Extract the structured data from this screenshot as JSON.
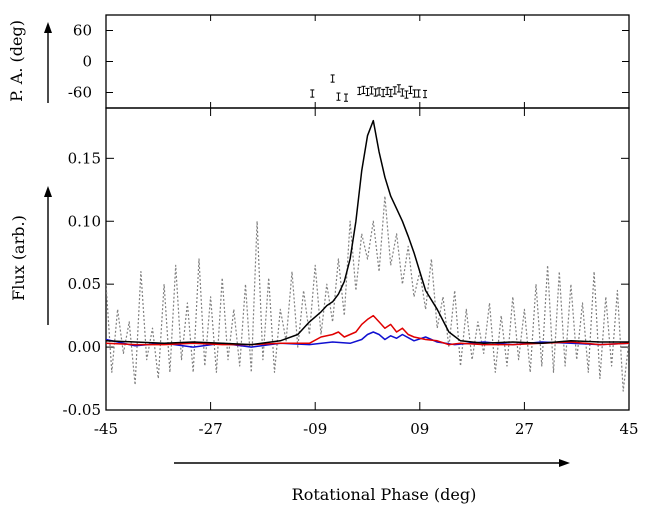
{
  "chart_data": [
    {
      "panel": "top",
      "type": "scatter",
      "ylabel": "P. A. (deg)",
      "ylim": [
        -90,
        90
      ],
      "yticks": [
        60,
        0,
        -60
      ],
      "yticklabels": [
        "60",
        "0",
        "-60"
      ],
      "points": [
        {
          "x": -9.5,
          "y": -62
        },
        {
          "x": -6.0,
          "y": -33
        },
        {
          "x": -5.0,
          "y": -68
        },
        {
          "x": -3.7,
          "y": -70
        },
        {
          "x": -1.4,
          "y": -57
        },
        {
          "x": -0.7,
          "y": -55
        },
        {
          "x": 0.0,
          "y": -59
        },
        {
          "x": 0.7,
          "y": -56
        },
        {
          "x": 1.4,
          "y": -60
        },
        {
          "x": 2.0,
          "y": -58
        },
        {
          "x": 2.7,
          "y": -61
        },
        {
          "x": 3.4,
          "y": -57
        },
        {
          "x": 4.0,
          "y": -61
        },
        {
          "x": 4.7,
          "y": -56
        },
        {
          "x": 5.4,
          "y": -52
        },
        {
          "x": 6.0,
          "y": -60
        },
        {
          "x": 6.7,
          "y": -64
        },
        {
          "x": 7.4,
          "y": -55
        },
        {
          "x": 8.1,
          "y": -62
        },
        {
          "x": 8.8,
          "y": -62
        },
        {
          "x": 9.9,
          "y": -63
        }
      ],
      "errorbar": 7
    },
    {
      "panel": "bottom",
      "type": "line",
      "xlabel": "Rotational Phase (deg)",
      "ylabel": "Flux (arb.)",
      "xlim": [
        -45,
        45
      ],
      "ylim": [
        -0.05,
        0.19
      ],
      "xticks": [
        -45,
        -27,
        -9,
        9,
        27,
        45
      ],
      "xticklabels": [
        "-45",
        "-27",
        "-09",
        "09",
        "27",
        "45"
      ],
      "yticks": [
        0.15,
        0.1,
        0.05,
        0.0,
        -0.05
      ],
      "yticklabels": [
        "0.15",
        "0.10",
        "0.05",
        "0.00",
        "-0.05"
      ],
      "series": [
        {
          "color": "#000000",
          "style": "solid",
          "x": [
            -45,
            -40,
            -35,
            -30,
            -25,
            -20,
            -15,
            -12,
            -10,
            -8,
            -7,
            -6,
            -5,
            -4,
            -3,
            -2,
            -1,
            0,
            1,
            2,
            3,
            4,
            5,
            6,
            7,
            8,
            9,
            10,
            12,
            14,
            16,
            18,
            20,
            25,
            30,
            35,
            40,
            45
          ],
          "y": [
            0.005,
            0.004,
            0.003,
            0.004,
            0.003,
            0.002,
            0.005,
            0.01,
            0.02,
            0.028,
            0.033,
            0.036,
            0.042,
            0.052,
            0.07,
            0.1,
            0.14,
            0.168,
            0.18,
            0.155,
            0.135,
            0.12,
            0.11,
            0.1,
            0.088,
            0.075,
            0.06,
            0.045,
            0.03,
            0.012,
            0.005,
            0.004,
            0.003,
            0.004,
            0.003,
            0.005,
            0.004,
            0.004
          ]
        },
        {
          "color": "#e00000",
          "style": "solid",
          "x": [
            -45,
            -40,
            -35,
            -30,
            -25,
            -20,
            -15,
            -10,
            -8,
            -6,
            -5,
            -4,
            -3,
            -2,
            -1,
            0,
            1,
            2,
            3,
            4,
            5,
            6,
            7,
            8,
            10,
            12,
            14,
            16,
            20,
            25,
            30,
            35,
            40,
            45
          ],
          "y": [
            0.003,
            0.002,
            0.002,
            0.003,
            0.002,
            0.002,
            0.003,
            0.003,
            0.008,
            0.01,
            0.012,
            0.008,
            0.01,
            0.012,
            0.018,
            0.022,
            0.025,
            0.02,
            0.015,
            0.018,
            0.012,
            0.015,
            0.01,
            0.008,
            0.006,
            0.005,
            0.002,
            0.003,
            0.002,
            0.002,
            0.003,
            0.004,
            0.002,
            0.003
          ]
        },
        {
          "color": "#1010d0",
          "style": "solid",
          "x": [
            -45,
            -40,
            -35,
            -30,
            -25,
            -20,
            -15,
            -10,
            -6,
            -3,
            -1,
            0,
            1,
            2,
            3,
            4,
            5,
            6,
            8,
            10,
            12,
            15,
            20,
            25,
            30,
            35,
            40,
            45
          ],
          "y": [
            0.006,
            0.001,
            0.003,
            0.0,
            0.003,
            0.0,
            0.003,
            0.002,
            0.004,
            0.003,
            0.006,
            0.01,
            0.012,
            0.01,
            0.006,
            0.009,
            0.007,
            0.01,
            0.005,
            0.008,
            0.004,
            0.002,
            0.004,
            0.002,
            0.004,
            0.003,
            0.002,
            0.003
          ]
        },
        {
          "color": "#808080",
          "style": "dotted",
          "x": [
            -45,
            -44,
            -43,
            -42,
            -41,
            -40,
            -39,
            -38,
            -37,
            -36,
            -35,
            -34,
            -33,
            -32,
            -31,
            -30,
            -29,
            -28,
            -27,
            -26,
            -25,
            -24,
            -23,
            -22,
            -21,
            -20,
            -19,
            -18,
            -17,
            -16,
            -15,
            -14,
            -13,
            -12,
            -11,
            -10,
            -9,
            -8,
            -7,
            -6,
            -5,
            -4,
            -3,
            -2,
            -1,
            0,
            1,
            2,
            3,
            4,
            5,
            6,
            7,
            8,
            9,
            10,
            11,
            12,
            13,
            14,
            15,
            16,
            17,
            18,
            19,
            20,
            21,
            22,
            23,
            24,
            25,
            26,
            27,
            28,
            29,
            30,
            31,
            32,
            33,
            34,
            35,
            36,
            37,
            38,
            39,
            40,
            41,
            42,
            43,
            44,
            45
          ],
          "y": [
            0.05,
            -0.02,
            0.03,
            -0.005,
            0.02,
            -0.03,
            0.06,
            -0.01,
            0.015,
            -0.025,
            0.05,
            -0.02,
            0.065,
            -0.01,
            0.035,
            -0.02,
            0.07,
            -0.015,
            0.04,
            -0.02,
            0.055,
            -0.01,
            0.03,
            -0.015,
            0.05,
            -0.02,
            0.1,
            -0.01,
            0.055,
            -0.02,
            0.03,
            0.005,
            0.06,
            0.0,
            0.045,
            0.01,
            0.065,
            0.01,
            0.05,
            0.02,
            0.07,
            0.025,
            0.1,
            0.045,
            0.09,
            0.07,
            0.1,
            0.06,
            0.12,
            0.065,
            0.09,
            0.05,
            0.08,
            0.04,
            0.06,
            0.03,
            0.07,
            0.015,
            0.04,
            0.0,
            0.045,
            -0.015,
            0.03,
            -0.01,
            0.02,
            -0.005,
            0.035,
            -0.02,
            0.025,
            -0.015,
            0.04,
            -0.01,
            0.03,
            -0.02,
            0.05,
            -0.015,
            0.065,
            -0.02,
            0.06,
            -0.015,
            0.05,
            -0.01,
            0.035,
            -0.02,
            0.06,
            -0.025,
            0.04,
            -0.015,
            0.045,
            -0.035,
            0.005
          ]
        }
      ],
      "arrow": "right",
      "grid": false
    }
  ]
}
